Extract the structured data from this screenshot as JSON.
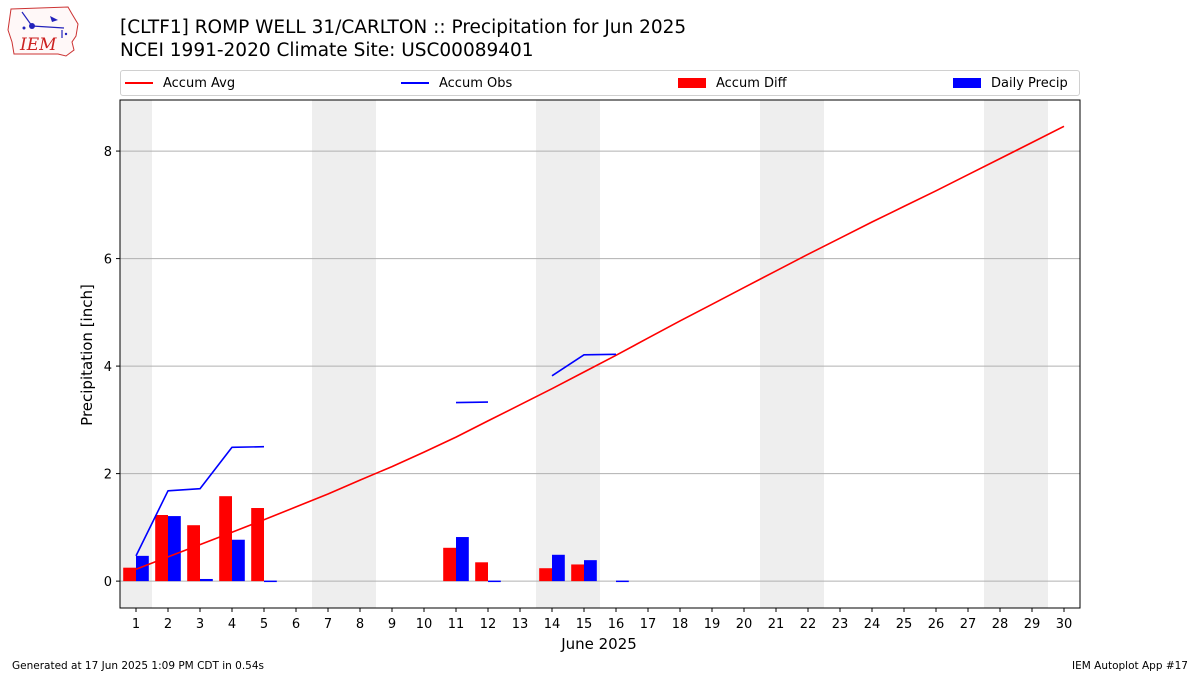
{
  "header": {
    "title_line1": "[CLTF1] ROMP WELL 31/CARLTON :: Precipitation for Jun 2025",
    "title_line2": "NCEI 1991-2020 Climate Site: USC00089401"
  },
  "logo": {
    "text": "IEM",
    "icon": "iem-iowa-logo-icon"
  },
  "legend": {
    "accum_avg": "Accum Avg",
    "accum_obs": "Accum Obs",
    "accum_diff": "Accum Diff",
    "daily_precip": "Daily Precip"
  },
  "footer": {
    "left": "Generated at 17 Jun 2025 1:09 PM CDT in 0.54s",
    "right": "IEM Autoplot App #17"
  },
  "chart_data": {
    "type": "bar",
    "xlabel": "June 2025",
    "ylabel": "Precipitation [inch]",
    "xlim": [
      0.5,
      30.5
    ],
    "ylim": [
      -0.5,
      8.95
    ],
    "yticks": [
      0,
      2,
      4,
      6,
      8
    ],
    "grid": "horizontal",
    "legend_placement": "top",
    "weekend_shading_days": [
      1,
      7,
      8,
      14,
      15,
      21,
      22,
      28,
      29
    ],
    "x": [
      1,
      2,
      3,
      4,
      5,
      6,
      7,
      8,
      9,
      10,
      11,
      12,
      13,
      14,
      15,
      16,
      17,
      18,
      19,
      20,
      21,
      22,
      23,
      24,
      25,
      26,
      27,
      28,
      29,
      30
    ],
    "series": [
      {
        "name": "Accum Avg",
        "kind": "line",
        "color": "#ff0000",
        "values": [
          0.22,
          0.45,
          0.68,
          0.91,
          1.14,
          1.38,
          1.62,
          1.88,
          2.13,
          2.4,
          2.68,
          2.98,
          3.28,
          3.58,
          3.89,
          4.2,
          4.52,
          4.84,
          5.15,
          5.46,
          5.77,
          6.08,
          6.38,
          6.68,
          6.97,
          7.26,
          7.56,
          7.86,
          8.16,
          8.46
        ]
      },
      {
        "name": "Accum Obs",
        "kind": "line",
        "color": "#0000ff",
        "values": [
          0.47,
          1.68,
          1.72,
          2.49,
          2.5,
          null,
          null,
          null,
          null,
          null,
          3.32,
          3.33,
          null,
          3.82,
          4.21,
          4.22,
          null,
          null,
          null,
          null,
          null,
          null,
          null,
          null,
          null,
          null,
          null,
          null,
          null,
          null
        ]
      },
      {
        "name": "Accum Diff",
        "kind": "bar",
        "color": "#ff0000",
        "values": [
          0.25,
          1.23,
          1.04,
          1.58,
          1.36,
          null,
          null,
          null,
          null,
          null,
          0.62,
          0.35,
          null,
          0.24,
          0.31,
          null,
          null,
          null,
          null,
          null,
          null,
          null,
          null,
          null,
          null,
          null,
          null,
          null,
          null,
          null
        ]
      },
      {
        "name": "Daily Precip",
        "kind": "bar",
        "color": "#0000ff",
        "values": [
          0.47,
          1.21,
          0.04,
          0.77,
          0.01,
          null,
          null,
          null,
          null,
          null,
          0.82,
          0.01,
          null,
          0.49,
          0.39,
          0.01,
          null,
          null,
          null,
          null,
          null,
          null,
          null,
          null,
          null,
          null,
          null,
          null,
          null,
          null
        ]
      }
    ]
  }
}
